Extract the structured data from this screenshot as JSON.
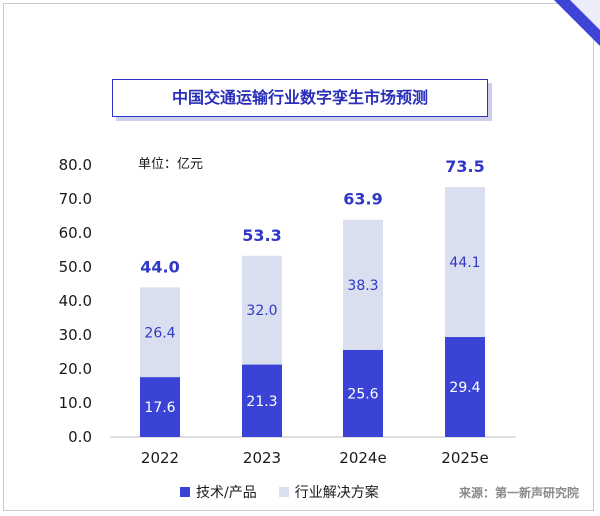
{
  "title": "中国交通运输行业数字孪生市场预测",
  "unit_label": "单位：亿元",
  "source": "来源：第一新声研究院",
  "colors": {
    "tech": "#3b43d6",
    "solution": "#dadff0",
    "accent": "#3038c6"
  },
  "chart_data": {
    "type": "bar",
    "stacked": true,
    "title": "中国交通运输行业数字孪生市场预测",
    "ylabel": "单位：亿元",
    "categories": [
      "2022",
      "2023",
      "2024e",
      "2025e"
    ],
    "series": [
      {
        "name": "技术/产品",
        "values": [
          17.6,
          21.3,
          25.6,
          29.4
        ],
        "labels": [
          "17.6",
          "21.3",
          "25.6",
          "29.4"
        ]
      },
      {
        "name": "行业解决方案",
        "values": [
          26.4,
          32.0,
          38.3,
          44.1
        ],
        "labels": [
          "26.4",
          "32.0",
          "38.3",
          "44.1"
        ]
      }
    ],
    "totals": [
      "44.0",
      "53.3",
      "63.9",
      "73.5"
    ],
    "ylim": [
      0,
      80
    ],
    "yticks": [
      "0.0",
      "10.0",
      "20.0",
      "30.0",
      "40.0",
      "50.0",
      "60.0",
      "70.0",
      "80.0"
    ],
    "legend": [
      "技术/产品",
      "行业解决方案"
    ]
  }
}
